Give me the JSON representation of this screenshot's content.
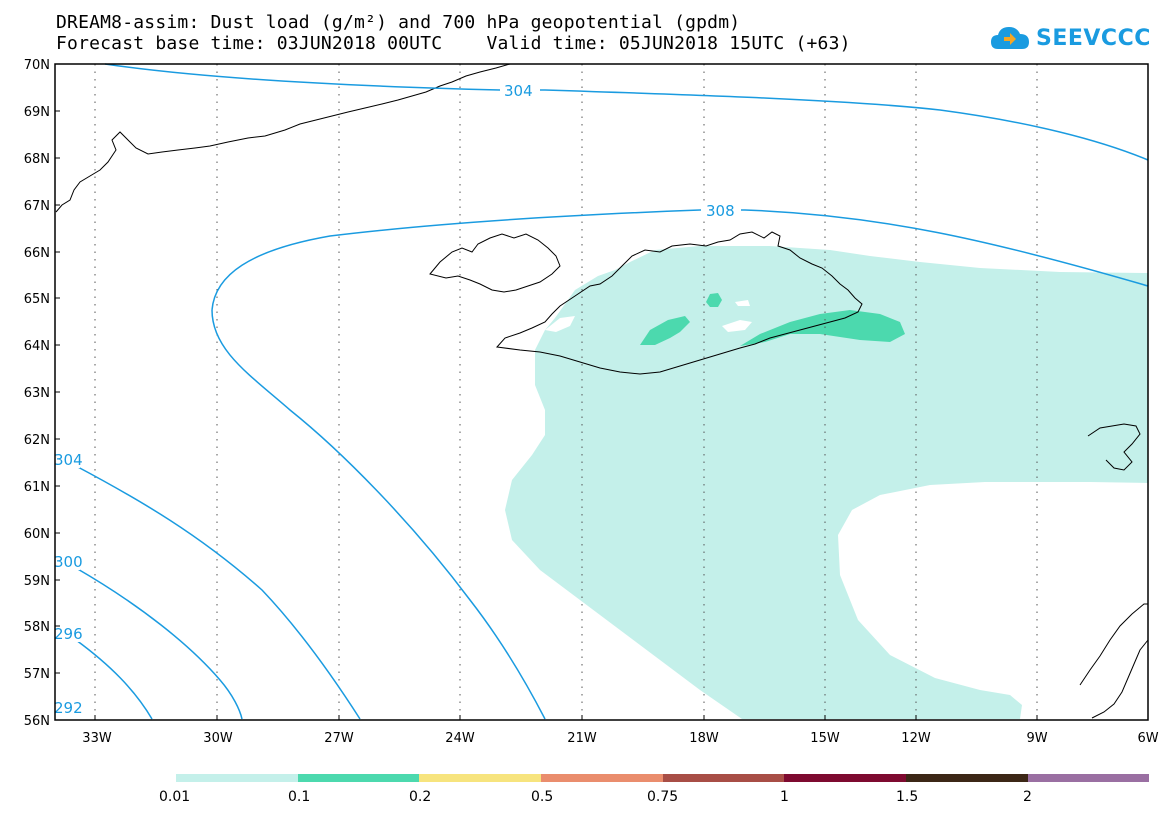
{
  "header": {
    "line1": "DREAM8-assim: Dust load (g/m²) and 700 hPa geopotential (gpdm)",
    "line2": "Forecast base time: 03JUN2018 00UTC    Valid time: 05JUN2018 15UTC (+63)"
  },
  "logo": {
    "text": "SEEVCCC",
    "icon": "cloud-icon",
    "color": "#1a9be0"
  },
  "map": {
    "lat_labels": [
      "70N",
      "69N",
      "68N",
      "67N",
      "66N",
      "65N",
      "64N",
      "63N",
      "62N",
      "61N",
      "60N",
      "59N",
      "58N",
      "57N",
      "56N"
    ],
    "lon_labels": [
      "33W",
      "30W",
      "27W",
      "24W",
      "21W",
      "18W",
      "15W",
      "12W",
      "9W",
      "6W"
    ],
    "lat_range": [
      56,
      70
    ],
    "lon_range": [
      -34.5,
      -6
    ],
    "contour_color": "#1a9be0",
    "contour_labels": [
      "304",
      "308",
      "304",
      "300",
      "296",
      "292"
    ]
  },
  "colorbar": {
    "labels": [
      "0.01",
      "0.1",
      "0.2",
      "0.5",
      "0.75",
      "1",
      "1.5",
      "2"
    ],
    "colors": [
      "#c4f0ea",
      "#4cd9ae",
      "#f7e47e",
      "#ea8d6d",
      "#a84e46",
      "#7e0a30",
      "#3c2716",
      "#9a6fa2"
    ]
  }
}
